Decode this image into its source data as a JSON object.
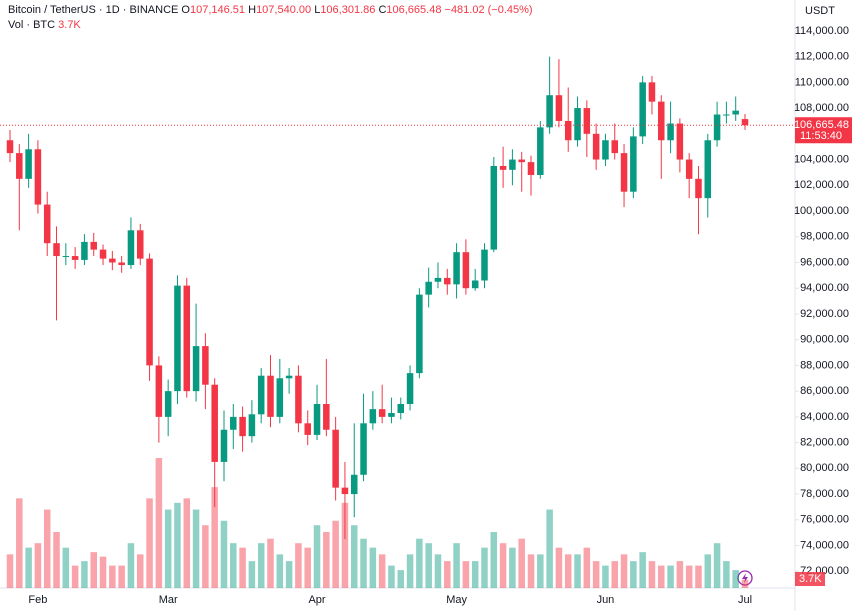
{
  "header": {
    "symbol": "Bitcoin / TetherUS · 1D · BINANCE",
    "o_label": "O",
    "o": "107,146.51",
    "h_label": "H",
    "h": "107,540.00",
    "l_label": "L",
    "l": "106,301.86",
    "c_label": "C",
    "c": "106,665.48",
    "change": "−481.02 (−0.45%)",
    "vol_label": "Vol · BTC",
    "vol": "3.7K"
  },
  "axis_currency": "USDT",
  "price_label": "106,665.48",
  "countdown": "11:53:40",
  "volume_badge": "3.7K",
  "chart_data": {
    "type": "candlestick",
    "up_color": "#089981",
    "down_color": "#f23645",
    "last_price": 106665.48,
    "ylim": [
      70700,
      116400
    ],
    "yticks": [
      {
        "value": 72000,
        "label": "72,000.00"
      },
      {
        "value": 74000,
        "label": "74,000.00"
      },
      {
        "value": 76000,
        "label": "76,000.00"
      },
      {
        "value": 78000,
        "label": "78,000.00"
      },
      {
        "value": 80000,
        "label": "80,000.00"
      },
      {
        "value": 82000,
        "label": "82,000.00"
      },
      {
        "value": 84000,
        "label": "84,000.00"
      },
      {
        "value": 86000,
        "label": "86,000.00"
      },
      {
        "value": 88000,
        "label": "88,000.00"
      },
      {
        "value": 90000,
        "label": "90,000.00"
      },
      {
        "value": 92000,
        "label": "92,000.00"
      },
      {
        "value": 94000,
        "label": "94,000.00"
      },
      {
        "value": 96000,
        "label": "96,000.00"
      },
      {
        "value": 98000,
        "label": "98,000.00"
      },
      {
        "value": 100000,
        "label": "100,000.00"
      },
      {
        "value": 102000,
        "label": "102,000.00"
      },
      {
        "value": 104000,
        "label": "104,000.00"
      },
      {
        "value": 106000,
        "label": "106,000.00"
      },
      {
        "value": 108000,
        "label": "108,000.00"
      },
      {
        "value": 110000,
        "label": "110,000.00"
      },
      {
        "value": 112000,
        "label": "112,000.00"
      },
      {
        "value": 114000,
        "label": "114,000.00"
      }
    ],
    "categories": [
      null,
      null,
      null,
      "Feb",
      null,
      null,
      null,
      null,
      null,
      null,
      null,
      null,
      null,
      null,
      null,
      null,
      null,
      "Mar",
      null,
      null,
      null,
      null,
      null,
      null,
      null,
      null,
      null,
      null,
      null,
      null,
      null,
      null,
      null,
      "Apr",
      null,
      null,
      null,
      null,
      null,
      null,
      null,
      null,
      null,
      null,
      null,
      null,
      null,
      null,
      "May",
      null,
      null,
      null,
      null,
      null,
      null,
      null,
      null,
      null,
      null,
      null,
      null,
      null,
      null,
      null,
      "Jun",
      null,
      null,
      null,
      null,
      null,
      null,
      null,
      null,
      null,
      null,
      null,
      null,
      null,
      null,
      "Jul"
    ],
    "candles": [
      [
        105500,
        106300,
        103800,
        104500
      ],
      [
        104500,
        105200,
        98500,
        102500
      ],
      [
        102500,
        106000,
        101800,
        104800
      ],
      [
        104800,
        105500,
        99800,
        100500
      ],
      [
        100500,
        101500,
        96500,
        97500
      ],
      [
        97500,
        98800,
        91500,
        96500
      ],
      [
        96500,
        97500,
        95800,
        96500
      ],
      [
        96500,
        97200,
        95500,
        96200
      ],
      [
        96200,
        98200,
        95800,
        97600
      ],
      [
        97600,
        98300,
        96500,
        97000
      ],
      [
        97000,
        97400,
        95800,
        96300
      ],
      [
        96300,
        96900,
        95400,
        96000
      ],
      [
        96000,
        96500,
        95200,
        95800
      ],
      [
        95800,
        99500,
        95500,
        98500
      ],
      [
        98500,
        99000,
        95800,
        96300
      ],
      [
        96300,
        96700,
        86800,
        88000
      ],
      [
        88000,
        88700,
        82000,
        84000
      ],
      [
        84000,
        86900,
        82500,
        86000
      ],
      [
        86000,
        95000,
        85000,
        94200
      ],
      [
        94200,
        94800,
        85500,
        86000
      ],
      [
        86000,
        92800,
        85200,
        89500
      ],
      [
        89500,
        90500,
        84600,
        86500
      ],
      [
        86500,
        87000,
        77000,
        80500
      ],
      [
        80500,
        84500,
        79000,
        83000
      ],
      [
        83000,
        85000,
        81500,
        84000
      ],
      [
        84000,
        84800,
        81300,
        82500
      ],
      [
        82500,
        85300,
        82000,
        84200
      ],
      [
        84200,
        87800,
        83500,
        87200
      ],
      [
        87200,
        88800,
        83200,
        84000
      ],
      [
        84000,
        88500,
        83500,
        87000
      ],
      [
        87000,
        87800,
        85800,
        87200
      ],
      [
        87200,
        88000,
        82800,
        83500
      ],
      [
        83500,
        84500,
        81800,
        82600
      ],
      [
        82600,
        86500,
        82200,
        85000
      ],
      [
        85000,
        88500,
        82500,
        83000
      ],
      [
        83000,
        84000,
        77500,
        78500
      ],
      [
        78500,
        80500,
        74500,
        78000
      ],
      [
        78000,
        83500,
        76200,
        79500
      ],
      [
        79500,
        85800,
        79000,
        83500
      ],
      [
        83500,
        86000,
        83000,
        84600
      ],
      [
        84600,
        86500,
        83500,
        84000
      ],
      [
        84000,
        85500,
        83500,
        84300
      ],
      [
        84300,
        85500,
        83800,
        85000
      ],
      [
        85000,
        88000,
        84500,
        87400
      ],
      [
        87400,
        94000,
        87000,
        93500
      ],
      [
        93500,
        95600,
        92500,
        94500
      ],
      [
        94500,
        96000,
        94000,
        94800
      ],
      [
        94800,
        95500,
        93500,
        94300
      ],
      [
        94300,
        97500,
        93200,
        96800
      ],
      [
        96800,
        97800,
        93500,
        94000
      ],
      [
        94000,
        95500,
        93800,
        94600
      ],
      [
        94600,
        97500,
        94000,
        97000
      ],
      [
        97000,
        104200,
        96800,
        103500
      ],
      [
        103500,
        105000,
        101800,
        103200
      ],
      [
        103200,
        104800,
        102000,
        104000
      ],
      [
        104000,
        104600,
        101500,
        103800
      ],
      [
        103800,
        104300,
        101200,
        102800
      ],
      [
        102800,
        107000,
        102500,
        106500
      ],
      [
        106500,
        112000,
        106000,
        109000
      ],
      [
        109000,
        111800,
        106500,
        107000
      ],
      [
        107000,
        109600,
        104600,
        105500
      ],
      [
        105500,
        108900,
        105000,
        108000
      ],
      [
        108000,
        108600,
        104200,
        106000
      ],
      [
        106000,
        106800,
        103200,
        104000
      ],
      [
        104000,
        106000,
        103500,
        105500
      ],
      [
        105500,
        106800,
        104000,
        104500
      ],
      [
        104500,
        105200,
        100300,
        101500
      ],
      [
        101500,
        106500,
        101000,
        105800
      ],
      [
        105800,
        110500,
        105200,
        110000
      ],
      [
        110000,
        110500,
        107500,
        108500
      ],
      [
        108500,
        109000,
        102500,
        105500
      ],
      [
        105500,
        108500,
        104500,
        106800
      ],
      [
        106800,
        107200,
        103000,
        104000
      ],
      [
        104000,
        104500,
        101000,
        102500
      ],
      [
        102500,
        103500,
        98200,
        101000
      ],
      [
        101000,
        106000,
        99500,
        105500
      ],
      [
        105500,
        108500,
        105000,
        107500
      ],
      [
        107500,
        108500,
        106800,
        107500
      ],
      [
        107500,
        108900,
        107000,
        107800
      ],
      [
        107146.51,
        107540,
        106301.86,
        106665.48
      ]
    ],
    "volumes": [
      15000,
      40000,
      18000,
      20000,
      35000,
      25000,
      18000,
      10000,
      12000,
      16000,
      14000,
      10000,
      10000,
      20000,
      15000,
      40000,
      58000,
      35000,
      38000,
      40000,
      35000,
      28000,
      45000,
      30000,
      20000,
      18000,
      12000,
      20000,
      22000,
      15000,
      12000,
      20000,
      18000,
      28000,
      25000,
      30000,
      38000,
      28000,
      22000,
      18000,
      15000,
      10000,
      8000,
      15000,
      22000,
      20000,
      15000,
      12000,
      20000,
      12000,
      12000,
      18000,
      25000,
      20000,
      18000,
      22000,
      15000,
      15000,
      35000,
      18000,
      15000,
      15000,
      18000,
      12000,
      10000,
      12000,
      15000,
      12000,
      16000,
      12000,
      10000,
      10000,
      12000,
      10000,
      10000,
      15000,
      20000,
      12000,
      8000,
      3700
    ]
  }
}
